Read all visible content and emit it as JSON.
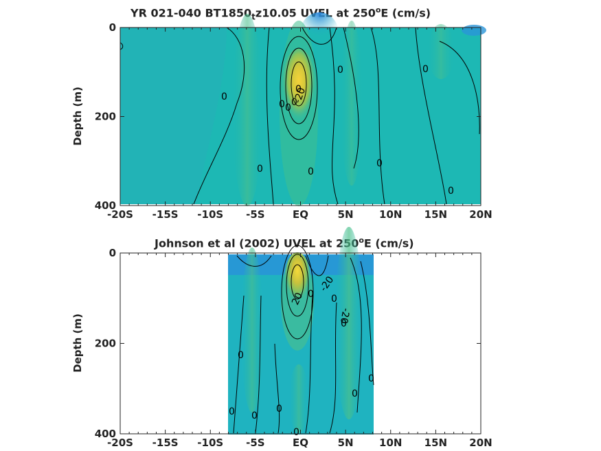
{
  "chart_data": [
    {
      "type": "heatmap",
      "subtype": "filled-contour",
      "title": "YR 021-040 BT1850",
      "title_subscript": "t",
      "title_rest": "z10.05 UVEL at 250",
      "title_sup": "o",
      "title_end": "E (cm/s)",
      "ylabel": "Depth (m)",
      "x_ticklabels": [
        "-20S",
        "-15S",
        "-10S",
        "-5S",
        "EQ",
        "5N",
        "10N",
        "15N",
        "20N"
      ],
      "x_tick_values": [
        -20,
        -15,
        -10,
        -5,
        0,
        5,
        10,
        15,
        20
      ],
      "y_ticklabels": [
        "0",
        "200",
        "400"
      ],
      "y_tick_values": [
        0,
        200,
        400
      ],
      "xlim": [
        -20,
        20
      ],
      "ylim": [
        400,
        0
      ],
      "data_extent_lat": [
        -20,
        20
      ],
      "contour_labels": [
        "0",
        "0",
        "0",
        "0",
        "0",
        "0",
        "0",
        "0",
        "0",
        "-20",
        "0",
        "0"
      ],
      "maxima": [
        {
          "lat": 0,
          "depth": 130,
          "label": "jet core"
        }
      ]
    },
    {
      "type": "heatmap",
      "subtype": "filled-contour",
      "title": "Johnson et al (2002) UVEL at 250",
      "title_sup": "o",
      "title_end": "E (cm/s)",
      "ylabel": "Depth (m)",
      "x_ticklabels": [
        "-20S",
        "-15S",
        "-10S",
        "-5S",
        "EQ",
        "5N",
        "10N",
        "15N",
        "20N"
      ],
      "x_tick_values": [
        -20,
        -15,
        -10,
        -5,
        0,
        5,
        10,
        15,
        20
      ],
      "y_ticklabels": [
        "0",
        "200",
        "400"
      ],
      "y_tick_values": [
        0,
        200,
        400
      ],
      "xlim": [
        -20,
        20
      ],
      "ylim": [
        400,
        0
      ],
      "data_extent_lat": [
        -8,
        8
      ],
      "contour_labels": [
        "20",
        "-20",
        "0",
        "0",
        "0",
        "-20",
        "0",
        "0",
        "0",
        "0",
        "0",
        "0",
        "0"
      ],
      "maxima": [
        {
          "lat": 0,
          "depth": 70,
          "label": "jet core"
        }
      ]
    }
  ]
}
